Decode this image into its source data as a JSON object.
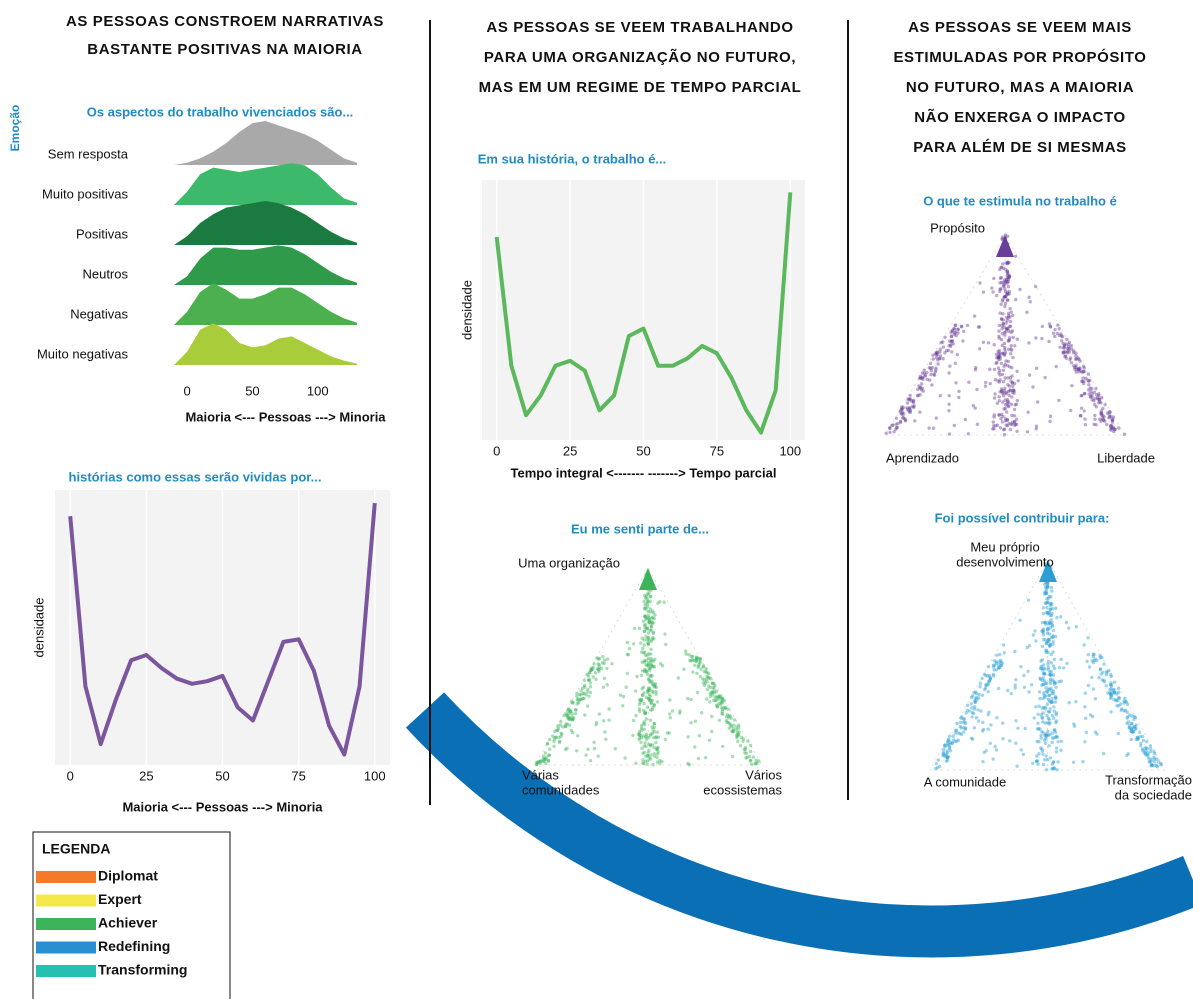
{
  "columns": [
    {
      "heading": [
        "AS PESSOAS CONSTROEM NARRATIVAS",
        "BASTANTE POSITIVAS NA MAIORIA"
      ],
      "charts": [
        {
          "type": "ridgeline",
          "title": "Os aspectos do trabalho vivenciados são...",
          "y_label": "Emoção",
          "x_label": "Maioria <--- Pessoas ---> Minoria",
          "x": [
            -10,
            0,
            10,
            20,
            30,
            40,
            50,
            60,
            70,
            80,
            90,
            100,
            110,
            120,
            130
          ],
          "xlim": [
            -10,
            130
          ],
          "xticks": [
            0,
            50,
            100
          ],
          "series": [
            {
              "name": "Sem resposta",
              "color": "#a9a9a9",
              "values": [
                0,
                0.05,
                0.15,
                0.3,
                0.5,
                0.75,
                0.95,
                1,
                0.9,
                0.8,
                0.7,
                0.55,
                0.35,
                0.15,
                0.05
              ]
            },
            {
              "name": "Muito positivas",
              "color": "#3cb96b",
              "values": [
                0,
                0.3,
                0.7,
                0.85,
                0.8,
                0.75,
                0.8,
                0.85,
                0.9,
                0.95,
                0.9,
                0.7,
                0.4,
                0.15,
                0.05
              ]
            },
            {
              "name": "Positivas",
              "color": "#1b7a3f",
              "values": [
                0,
                0.2,
                0.5,
                0.7,
                0.85,
                0.9,
                0.95,
                1,
                0.95,
                0.85,
                0.7,
                0.5,
                0.3,
                0.15,
                0.05
              ]
            },
            {
              "name": "Neutros",
              "color": "#2e9a4a",
              "values": [
                0,
                0.2,
                0.6,
                0.85,
                0.85,
                0.8,
                0.8,
                0.85,
                0.9,
                0.85,
                0.7,
                0.5,
                0.3,
                0.15,
                0.05
              ]
            },
            {
              "name": "Negativas",
              "color": "#4caf50",
              "values": [
                0,
                0.3,
                0.75,
                0.95,
                0.8,
                0.6,
                0.6,
                0.7,
                0.85,
                0.85,
                0.7,
                0.5,
                0.3,
                0.15,
                0.05
              ]
            },
            {
              "name": "Muito negativas",
              "color": "#a8cc3a",
              "values": [
                0,
                0.3,
                0.8,
                0.95,
                0.8,
                0.5,
                0.4,
                0.45,
                0.6,
                0.65,
                0.5,
                0.35,
                0.2,
                0.1,
                0.03
              ]
            }
          ]
        },
        {
          "type": "line",
          "title": "histórias como essas serão vividas por...",
          "y_label": "densidade",
          "x_label": "Maioria <--- Pessoas ---> Minoria",
          "color": "#7b559e",
          "x": [
            0,
            5,
            10,
            15,
            20,
            25,
            30,
            35,
            40,
            45,
            50,
            55,
            60,
            65,
            70,
            75,
            80,
            85,
            90,
            95,
            100
          ],
          "values": [
            0.95,
            0.3,
            0.08,
            0.25,
            0.4,
            0.42,
            0.37,
            0.33,
            0.31,
            0.32,
            0.34,
            0.22,
            0.17,
            0.32,
            0.47,
            0.48,
            0.36,
            0.15,
            0.04,
            0.3,
            1.0
          ],
          "xlim": [
            -5,
            105
          ],
          "ylim": [
            0,
            1.05
          ],
          "xticks": [
            0,
            25,
            50,
            75,
            100
          ]
        }
      ]
    },
    {
      "heading": [
        "AS PESSOAS SE VEEM TRABALHANDO",
        "PARA UMA ORGANIZAÇÃO NO FUTURO,",
        "MAS EM UM REGIME DE TEMPO PARCIAL"
      ],
      "charts": [
        {
          "type": "line",
          "title": "Em sua história, o trabalho é...",
          "y_label": "densidade",
          "x_label": "Tempo integral <-------     -------> Tempo parcial",
          "color": "#5cb85c",
          "x": [
            0,
            5,
            10,
            15,
            20,
            25,
            30,
            35,
            40,
            45,
            50,
            55,
            60,
            65,
            70,
            75,
            80,
            85,
            90,
            95,
            100
          ],
          "values": [
            0.82,
            0.3,
            0.1,
            0.18,
            0.3,
            0.32,
            0.28,
            0.12,
            0.18,
            0.42,
            0.45,
            0.3,
            0.3,
            0.33,
            0.38,
            0.35,
            0.25,
            0.12,
            0.03,
            0.2,
            1.0
          ],
          "xlim": [
            -5,
            105
          ],
          "ylim": [
            0,
            1.05
          ],
          "xticks": [
            0,
            25,
            50,
            75,
            100
          ]
        },
        {
          "type": "ternary",
          "title": "Eu me senti parte de...",
          "color": "#3cb55a",
          "vertices": [
            [
              "Uma organização"
            ],
            [
              "Várias",
              "comunidades"
            ],
            [
              "Vários",
              "ecossistemas"
            ]
          ]
        }
      ]
    },
    {
      "heading": [
        "AS PESSOAS SE VEEM MAIS",
        "ESTIMULADAS POR PROPÓSITO",
        "NO FUTURO, MAS A MAIORIA",
        "NÃO ENXERGA O IMPACTO",
        "PARA ALÉM DE SI MESMAS"
      ],
      "charts": [
        {
          "type": "ternary",
          "title": "O que te estimula no trabalho é",
          "color": "#6a3d9a",
          "vertices": [
            [
              "Propósito"
            ],
            [
              "Aprendizado"
            ],
            [
              "Liberdade"
            ]
          ]
        },
        {
          "type": "ternary",
          "title": "Foi possível contribuir para:",
          "color": "#2a9fd6",
          "vertices": [
            [
              "Meu próprio",
              "desenvolvimento"
            ],
            [
              "A comunidade"
            ],
            [
              "Transformação",
              "da sociedade"
            ]
          ]
        }
      ]
    }
  ],
  "legend": {
    "title": "LEGENDA",
    "items": [
      {
        "name": "Diplomat",
        "color": "#f47a2a"
      },
      {
        "name": "Expert",
        "color": "#f4e84a"
      },
      {
        "name": "Achiever",
        "color": "#3cb55a"
      },
      {
        "name": "Redefining",
        "color": "#2a8fd0"
      },
      {
        "name": "Transforming",
        "color": "#26c0b0"
      }
    ]
  }
}
